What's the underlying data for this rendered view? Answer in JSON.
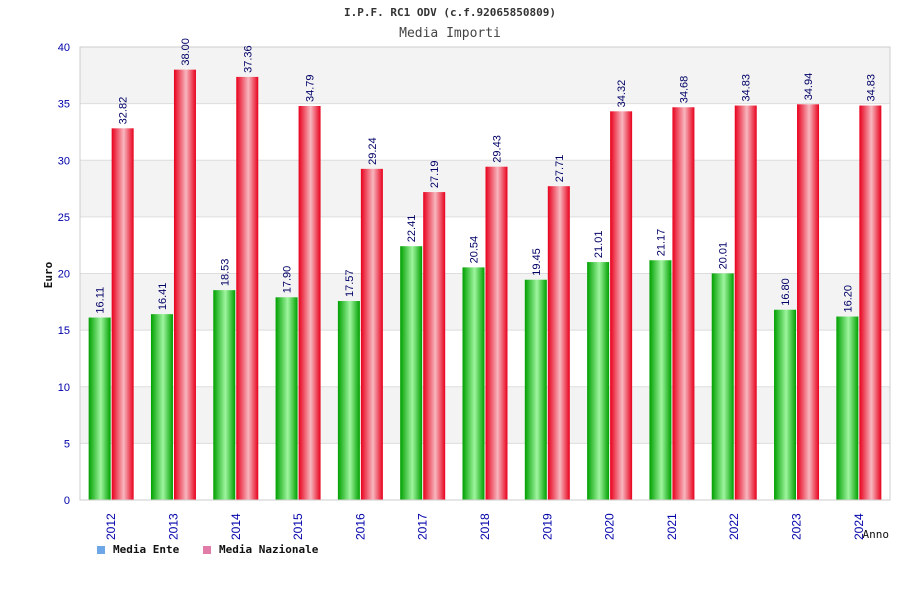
{
  "title": "I.P.F. RC1 ODV (c.f.92065850809)",
  "colors": {
    "ente": "#00a000",
    "ente_light": "#9ff59f",
    "nazionale": "#e8001c",
    "nazionale_light": "#f7b7bf",
    "axis_text": "#0000aa",
    "legend_ente": "#6ea7e8",
    "legend_naz": "#e17ba8"
  },
  "chart_data": {
    "type": "bar",
    "title": "I.P.F. RC1 ODV (c.f.92065850809)",
    "subtitle": "Media Importi",
    "xlabel": "Anno",
    "ylabel": "Euro",
    "ylim": [
      0,
      40
    ],
    "yticks": [
      0,
      5,
      10,
      15,
      20,
      25,
      30,
      35,
      40
    ],
    "grid": true,
    "legend_position": "bottom-left",
    "categories": [
      "2012",
      "2013",
      "2014",
      "2015",
      "2016",
      "2017",
      "2018",
      "2019",
      "2020",
      "2021",
      "2022",
      "2023",
      "2024"
    ],
    "series": [
      {
        "name": "Media Ente",
        "values": [
          16.11,
          16.41,
          18.53,
          17.9,
          17.57,
          22.41,
          20.54,
          19.45,
          21.01,
          21.17,
          20.01,
          16.8,
          16.2
        ],
        "labels": [
          "16.11",
          "16.41",
          "18.53",
          "17.90",
          "17.57",
          "22.41",
          "20.54",
          "19.45",
          "21.01",
          "21.17",
          "20.01",
          "16.80",
          "16.20"
        ]
      },
      {
        "name": "Media Nazionale",
        "values": [
          32.82,
          38.0,
          37.36,
          34.79,
          29.24,
          27.19,
          29.43,
          27.71,
          34.32,
          34.68,
          34.83,
          34.94,
          34.83
        ],
        "labels": [
          "32.82",
          "38.00",
          "37.36",
          "34.79",
          "29.24",
          "27.19",
          "29.43",
          "27.71",
          "34.32",
          "34.68",
          "34.83",
          "34.94",
          "34.83"
        ]
      }
    ]
  }
}
